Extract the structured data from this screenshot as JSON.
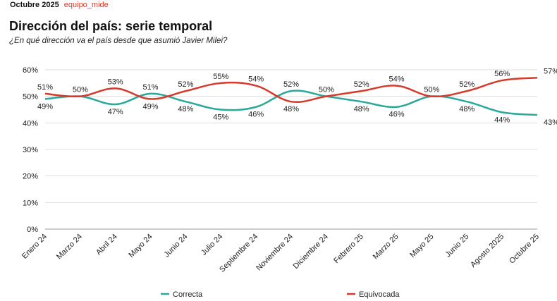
{
  "header": {
    "date": "Octubre 2025",
    "brand": "equipo_mide"
  },
  "title": "Dirección del país: serie temporal",
  "subtitle": "¿En qué dirección va el país desde que asumió Javier Milei?",
  "chart_data": {
    "type": "line",
    "categories": [
      "Enero 24",
      "Marzo 24",
      "Abril 24",
      "Mayo 24",
      "Junio 24",
      "Julio 24",
      "Septiembre 24",
      "Noviembre 24",
      "Diciembre 24",
      "Febrero 25",
      "Marzo 25",
      "Mayo 25",
      "Junio 25",
      "Agosto 2025",
      "Octubre 25"
    ],
    "series": [
      {
        "name": "Correcta",
        "color": "#2aa89a",
        "values": [
          49,
          50,
          47,
          51,
          48,
          45,
          46,
          52,
          50,
          48,
          46,
          50,
          48,
          44,
          43
        ]
      },
      {
        "name": "Equivocada",
        "color": "#d63a2a",
        "values": [
          51,
          50,
          53,
          49,
          52,
          55,
          54,
          48,
          50,
          52,
          54,
          50,
          52,
          56,
          57
        ]
      }
    ],
    "ylim": [
      0,
      60
    ],
    "yticks": [
      "0%",
      "10%",
      "20%",
      "30%",
      "40%",
      "50%",
      "60%"
    ],
    "grid": true,
    "legend": "bottom",
    "smooth": true
  }
}
